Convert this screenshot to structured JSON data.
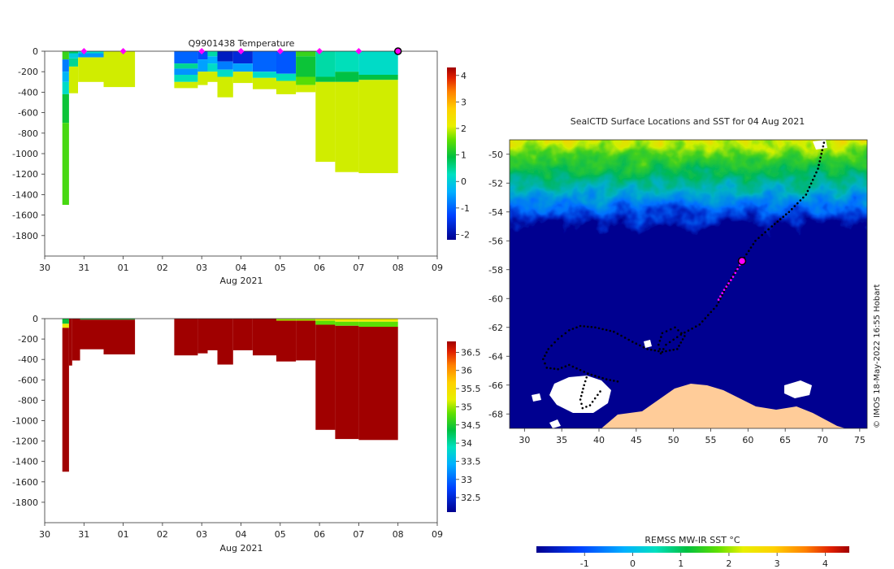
{
  "chart_data": [
    {
      "type": "heatmap",
      "title": "Q9901438  Temperature",
      "xlabel": "Aug 2021",
      "ylabel": "",
      "x_ticks": [
        "30",
        "31",
        "01",
        "02",
        "03",
        "04",
        "05",
        "06",
        "07",
        "08",
        "09"
      ],
      "x_range_days": [
        0,
        10
      ],
      "y_ticks": [
        "0",
        "-200",
        "-400",
        "-600",
        "-800",
        "-1000",
        "-1200",
        "-1400",
        "-1600",
        "-1800"
      ],
      "ylim": [
        -2000,
        0
      ],
      "colorbar": {
        "ticks": [
          "4",
          "3",
          "2",
          "1",
          "0",
          "-1",
          "-2"
        ],
        "range": [
          -2.2,
          4.3
        ]
      },
      "markers": {
        "label": "surface markers",
        "x_days": [
          1.0,
          2.0,
          4.0,
          5.0,
          6.0,
          7.0,
          8.0,
          9.0
        ],
        "final_x_day": 9.0
      },
      "profiles": [
        {
          "x0": 0.45,
          "x1": 0.62,
          "bottom": -1500,
          "layers": [
            [
              0,
              -80,
              1.3
            ],
            [
              -80,
              -200,
              -0.8
            ],
            [
              -200,
              -300,
              -0.3
            ],
            [
              -300,
              -420,
              0.2
            ],
            [
              -420,
              -700,
              1.0
            ],
            [
              -700,
              -1500,
              1.4
            ]
          ]
        },
        {
          "x0": 0.62,
          "x1": 0.85,
          "bottom": -410,
          "layers": [
            [
              0,
              -20,
              0.8
            ],
            [
              -20,
              -70,
              0.0
            ],
            [
              -70,
              -150,
              0.5
            ],
            [
              -150,
              -410,
              2.0
            ]
          ]
        },
        {
          "x0": 0.85,
          "x1": 1.5,
          "bottom": -300,
          "layers": [
            [
              0,
              -20,
              0.2
            ],
            [
              -20,
              -60,
              -0.6
            ],
            [
              -60,
              -300,
              2.0
            ]
          ]
        },
        {
          "x0": 1.5,
          "x1": 2.3,
          "bottom": -350,
          "layers": [
            [
              0,
              -350,
              2.0
            ]
          ]
        },
        {
          "x0": 3.3,
          "x1": 3.9,
          "bottom": -360,
          "layers": [
            [
              0,
              -120,
              -1.0
            ],
            [
              -120,
              -170,
              0.5
            ],
            [
              -170,
              -230,
              -0.6
            ],
            [
              -230,
              -300,
              0.3
            ],
            [
              -300,
              -360,
              2.0
            ]
          ]
        },
        {
          "x0": 3.9,
          "x1": 4.15,
          "bottom": -330,
          "layers": [
            [
              0,
              -80,
              -1.2
            ],
            [
              -80,
              -200,
              -0.5
            ],
            [
              -200,
              -330,
              2.0
            ]
          ]
        },
        {
          "x0": 4.15,
          "x1": 4.4,
          "bottom": -300,
          "layers": [
            [
              0,
              -50,
              0.4
            ],
            [
              -50,
              -120,
              -0.4
            ],
            [
              -120,
              -200,
              0.2
            ],
            [
              -200,
              -300,
              2.0
            ]
          ]
        },
        {
          "x0": 4.4,
          "x1": 4.8,
          "bottom": -450,
          "layers": [
            [
              0,
              -100,
              -1.8
            ],
            [
              -100,
              -180,
              -0.8
            ],
            [
              -180,
              -250,
              0.2
            ],
            [
              -250,
              -450,
              2.0
            ]
          ]
        },
        {
          "x0": 4.8,
          "x1": 5.3,
          "bottom": -310,
          "layers": [
            [
              0,
              -120,
              -1.6
            ],
            [
              -120,
              -200,
              -0.5
            ],
            [
              -200,
              -310,
              2.0
            ]
          ]
        },
        {
          "x0": 5.3,
          "x1": 5.9,
          "bottom": -370,
          "layers": [
            [
              0,
              -200,
              -1.0
            ],
            [
              -200,
              -260,
              0.2
            ],
            [
              -260,
              -370,
              2.0
            ]
          ]
        },
        {
          "x0": 5.9,
          "x1": 6.4,
          "bottom": -420,
          "layers": [
            [
              0,
              -220,
              -1.1
            ],
            [
              -220,
              -290,
              0.3
            ],
            [
              -290,
              -420,
              2.0
            ]
          ]
        },
        {
          "x0": 6.4,
          "x1": 6.9,
          "bottom": -400,
          "layers": [
            [
              0,
              -50,
              1.3
            ],
            [
              -50,
              -250,
              1.0
            ],
            [
              -250,
              -330,
              1.5
            ],
            [
              -330,
              -400,
              2.0
            ]
          ]
        },
        {
          "x0": 6.9,
          "x1": 7.4,
          "bottom": -1080,
          "layers": [
            [
              0,
              -250,
              0.4
            ],
            [
              -250,
              -300,
              0.9
            ],
            [
              -300,
              -1080,
              2.0
            ]
          ]
        },
        {
          "x0": 7.4,
          "x1": 8.0,
          "bottom": -1180,
          "layers": [
            [
              0,
              -200,
              0.3
            ],
            [
              -200,
              -300,
              0.9
            ],
            [
              -300,
              -1180,
              2.0
            ]
          ]
        },
        {
          "x0": 8.0,
          "x1": 9.0,
          "bottom": -1190,
          "layers": [
            [
              0,
              -230,
              0.2
            ],
            [
              -230,
              -280,
              0.9
            ],
            [
              -280,
              -1190,
              2.0
            ]
          ]
        }
      ]
    },
    {
      "type": "heatmap",
      "title": "",
      "xlabel": "Aug 2021",
      "ylabel": "",
      "x_ticks": [
        "30",
        "31",
        "01",
        "02",
        "03",
        "04",
        "05",
        "06",
        "07",
        "08",
        "09"
      ],
      "x_range_days": [
        0,
        10
      ],
      "y_ticks": [
        "0",
        "-200",
        "-400",
        "-600",
        "-800",
        "-1000",
        "-1200",
        "-1400",
        "-1600",
        "-1800"
      ],
      "ylim": [
        -2000,
        0
      ],
      "colorbar": {
        "ticks": [
          "36.5",
          "36",
          "35.5",
          "35",
          "34.5",
          "34",
          "33.5",
          "33",
          "32.5"
        ],
        "range": [
          32.1,
          36.8
        ]
      },
      "profiles": [
        {
          "x0": 0.45,
          "x1": 0.62,
          "bottom": -1500,
          "layers": [
            [
              0,
              -50,
              34.4
            ],
            [
              -50,
              -90,
              35.3
            ],
            [
              -90,
              -1500,
              36.8
            ]
          ]
        },
        {
          "x0": 0.62,
          "x1": 0.7,
          "bottom": -460,
          "layers": [
            [
              0,
              -460,
              36.8
            ]
          ]
        },
        {
          "x0": 0.7,
          "x1": 0.9,
          "bottom": -410,
          "layers": [
            [
              0,
              -410,
              36.8
            ]
          ]
        },
        {
          "x0": 0.9,
          "x1": 1.5,
          "bottom": -300,
          "layers": [
            [
              0,
              -10,
              34.4
            ],
            [
              -10,
              -300,
              36.8
            ]
          ]
        },
        {
          "x0": 1.5,
          "x1": 2.3,
          "bottom": -350,
          "layers": [
            [
              0,
              -10,
              34.4
            ],
            [
              -10,
              -350,
              36.8
            ]
          ]
        },
        {
          "x0": 3.3,
          "x1": 3.9,
          "bottom": -360,
          "layers": [
            [
              0,
              -360,
              36.8
            ]
          ]
        },
        {
          "x0": 3.9,
          "x1": 4.15,
          "bottom": -340,
          "layers": [
            [
              0,
              -340,
              36.8
            ]
          ]
        },
        {
          "x0": 4.15,
          "x1": 4.4,
          "bottom": -310,
          "layers": [
            [
              0,
              -310,
              36.8
            ]
          ]
        },
        {
          "x0": 4.4,
          "x1": 4.8,
          "bottom": -450,
          "layers": [
            [
              0,
              -450,
              36.8
            ]
          ]
        },
        {
          "x0": 4.8,
          "x1": 5.3,
          "bottom": -310,
          "layers": [
            [
              0,
              -310,
              36.8
            ]
          ]
        },
        {
          "x0": 5.3,
          "x1": 5.9,
          "bottom": -360,
          "layers": [
            [
              0,
              -360,
              36.8
            ]
          ]
        },
        {
          "x0": 5.9,
          "x1": 6.4,
          "bottom": -420,
          "layers": [
            [
              0,
              -20,
              35.0
            ],
            [
              -20,
              -420,
              36.8
            ]
          ]
        },
        {
          "x0": 6.4,
          "x1": 6.9,
          "bottom": -410,
          "layers": [
            [
              0,
              -20,
              35.0
            ],
            [
              -20,
              -410,
              36.8
            ]
          ]
        },
        {
          "x0": 6.9,
          "x1": 7.4,
          "bottom": -1090,
          "layers": [
            [
              0,
              -20,
              35.3
            ],
            [
              -20,
              -60,
              34.8
            ],
            [
              -60,
              -1090,
              36.8
            ]
          ]
        },
        {
          "x0": 7.4,
          "x1": 8.0,
          "bottom": -1180,
          "layers": [
            [
              0,
              -30,
              35.3
            ],
            [
              -30,
              -70,
              34.8
            ],
            [
              -70,
              -1180,
              36.8
            ]
          ]
        },
        {
          "x0": 8.0,
          "x1": 9.0,
          "bottom": -1190,
          "layers": [
            [
              0,
              -30,
              35.3
            ],
            [
              -30,
              -80,
              34.8
            ],
            [
              -80,
              -1190,
              36.8
            ]
          ]
        }
      ]
    },
    {
      "type": "heatmap",
      "title": "SealCTD Surface Locations and SST for 04 Aug 2021",
      "xlabel": "",
      "ylabel": "",
      "x_ticks": [
        "30",
        "35",
        "40",
        "45",
        "50",
        "55",
        "60",
        "65",
        "70",
        "75"
      ],
      "xlim": [
        28,
        76
      ],
      "y_ticks": [
        "-50",
        "-52",
        "-54",
        "-56",
        "-58",
        "-60",
        "-62",
        "-64",
        "-66",
        "-68"
      ],
      "ylim": [
        -69,
        -49
      ],
      "colorbar": {
        "label": "REMSS MW-IR SST °C",
        "ticks": [
          "-1",
          "0",
          "1",
          "2",
          "3",
          "4"
        ],
        "range": [
          -2,
          4.5
        ]
      },
      "credit": "© IMOS 18-May-2022 16:55 Hobart",
      "track": {
        "lon": [
          70.2,
          69.4,
          67.8,
          65.5,
          63.2,
          61.0,
          59.2,
          57.5,
          55.8,
          53.5,
          51.0,
          49.0,
          48.3,
          48.0,
          48.5,
          50.2,
          51.5,
          50.5,
          48.5,
          46.5,
          44.5,
          42.0,
          39.5,
          37.5,
          36.0,
          34.5,
          33.2,
          32.5,
          33.0,
          34.5,
          36.0,
          38.5,
          41.0,
          43.0
        ],
        "lat": [
          -49.2,
          -51.0,
          -52.8,
          -54.0,
          -55.0,
          -56.0,
          -57.4,
          -58.8,
          -60.5,
          -61.8,
          -62.5,
          -63.2,
          -63.8,
          -63.2,
          -62.4,
          -62.0,
          -62.6,
          -63.5,
          -63.7,
          -63.5,
          -63.0,
          -62.3,
          -62.0,
          -61.9,
          -62.2,
          -62.8,
          -63.5,
          -64.2,
          -64.8,
          -64.9,
          -64.6,
          -65.2,
          -65.6,
          -65.8
        ]
      },
      "track_branch": {
        "lon": [
          38.5,
          38.0,
          37.5,
          37.8,
          38.8,
          40.5
        ],
        "lat": [
          -65.2,
          -66.0,
          -67.0,
          -67.6,
          -67.4,
          -66.2
        ]
      },
      "current_segment": {
        "lon": [
          59.2,
          58.0,
          56.8,
          55.8
        ],
        "lat": [
          -57.4,
          -58.5,
          -59.4,
          -60.3
        ]
      },
      "current_position": {
        "lon": 59.2,
        "lat": -57.4
      }
    }
  ]
}
